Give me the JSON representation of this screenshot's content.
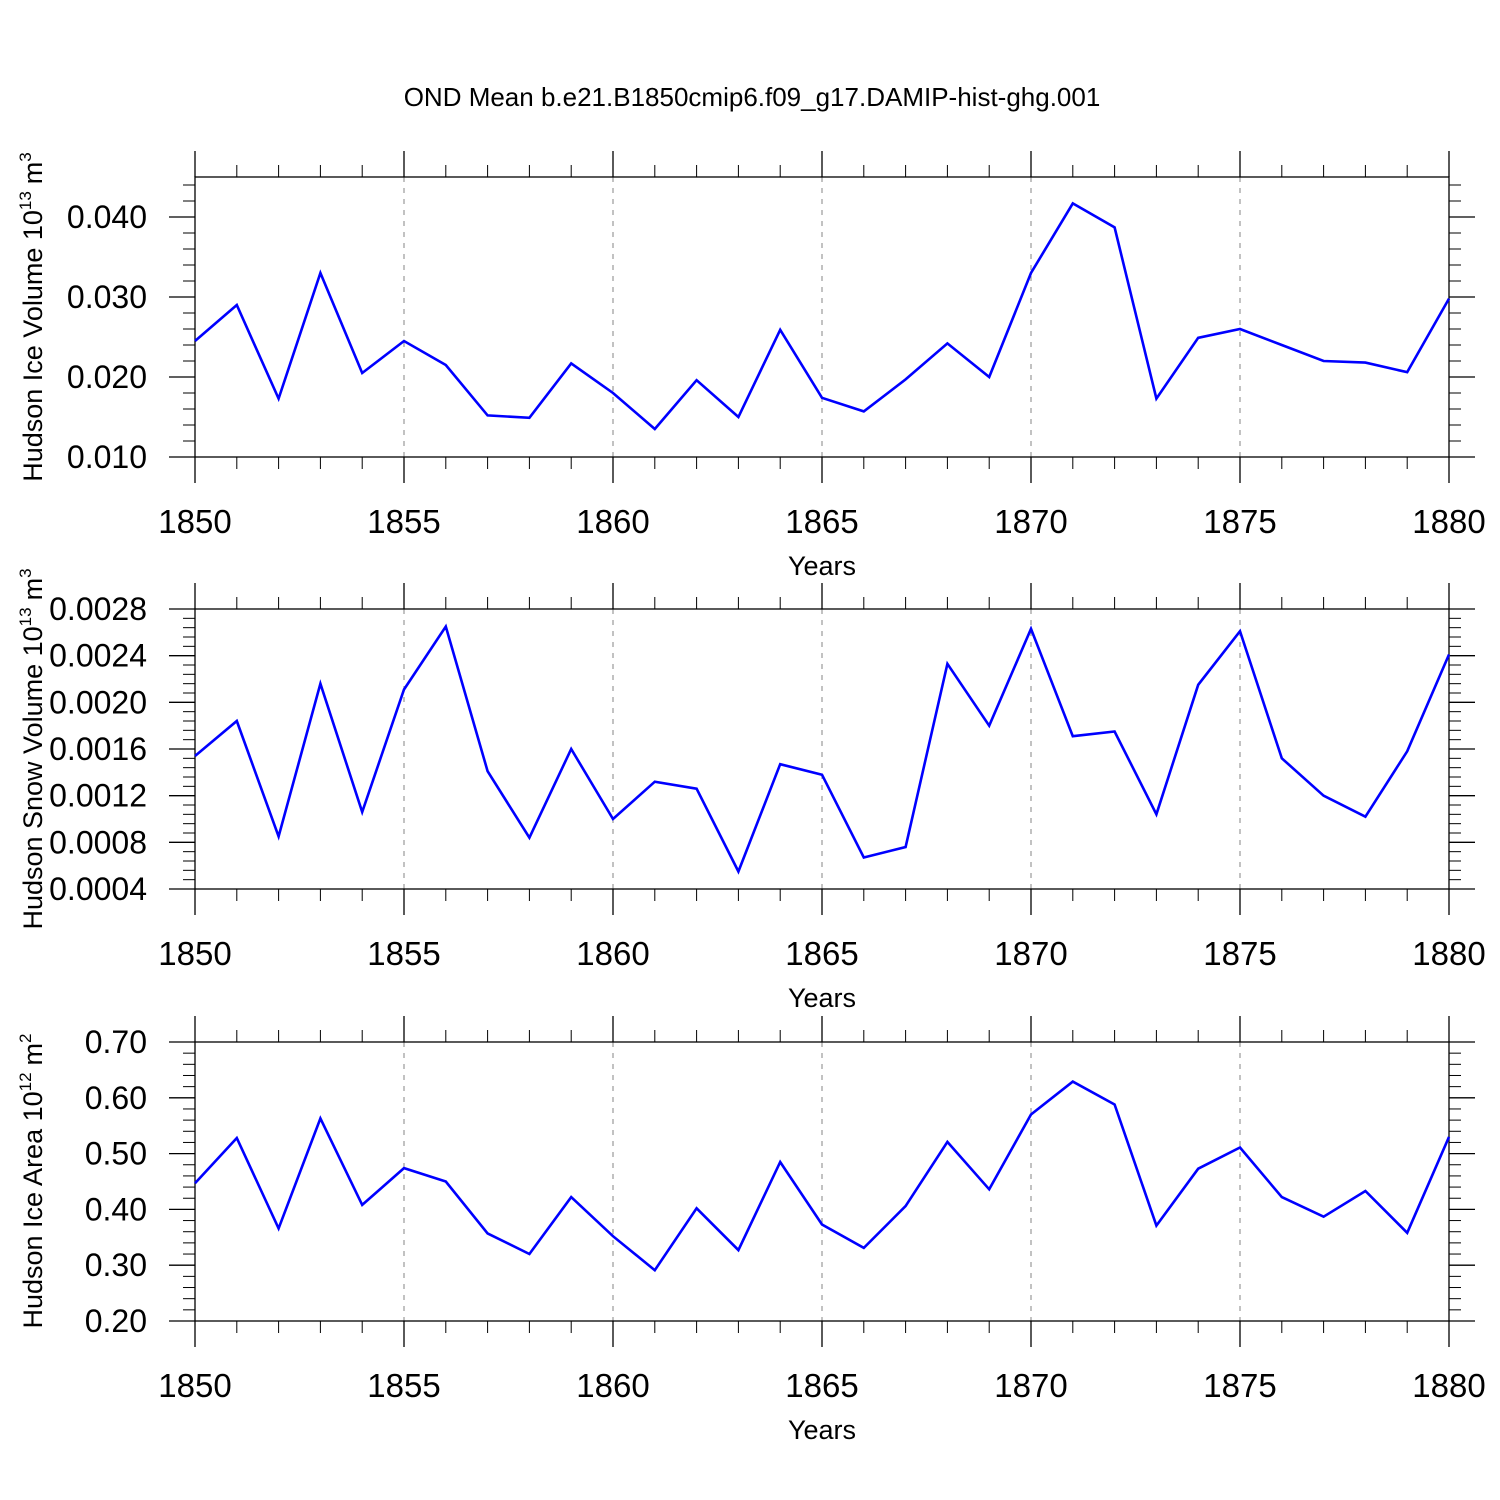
{
  "figure": {
    "title": "OND Mean b.e21.B1850cmip6.f09_g17.DAMIP-hist-ghg.001"
  },
  "chart_data": [
    {
      "type": "line",
      "ylabel": "Hudson Ice Volume 10",
      "ylabel_sup": "13",
      "ylabel_unit": "m",
      "ylabel_unit_sup": "3",
      "xlabel": "Years",
      "xlim": [
        1850,
        1880
      ],
      "ylim": [
        0.01,
        0.045
      ],
      "xticks": [
        1850,
        1855,
        1860,
        1865,
        1870,
        1875,
        1880
      ],
      "yticks": [
        0.01,
        0.02,
        0.03,
        0.04
      ],
      "ytick_labels": [
        "0.010",
        "0.020",
        "0.030",
        "0.040"
      ],
      "grid": "vertical-dashed",
      "color": "#0000ff",
      "x": [
        1850,
        1851,
        1852,
        1853,
        1854,
        1855,
        1856,
        1857,
        1858,
        1859,
        1860,
        1861,
        1862,
        1863,
        1864,
        1865,
        1866,
        1867,
        1868,
        1869,
        1870,
        1871,
        1872,
        1873,
        1874,
        1875,
        1876,
        1877,
        1878,
        1879,
        1880
      ],
      "y": [
        0.0245,
        0.029,
        0.0173,
        0.033,
        0.0205,
        0.0245,
        0.0215,
        0.0152,
        0.0149,
        0.0217,
        0.018,
        0.0135,
        0.0196,
        0.015,
        0.0259,
        0.0174,
        0.0157,
        0.0197,
        0.0242,
        0.02,
        0.033,
        0.0417,
        0.0387,
        0.0173,
        0.0249,
        0.026,
        0.024,
        0.022,
        0.0218,
        0.0206,
        0.0298
      ]
    },
    {
      "type": "line",
      "ylabel": "Hudson Snow Volume 10",
      "ylabel_sup": "13",
      "ylabel_unit": "m",
      "ylabel_unit_sup": "3",
      "xlabel": "Years",
      "xlim": [
        1850,
        1880
      ],
      "ylim": [
        0.0004,
        0.0028
      ],
      "xticks": [
        1850,
        1855,
        1860,
        1865,
        1870,
        1875,
        1880
      ],
      "yticks": [
        0.0004,
        0.0008,
        0.0012,
        0.0016,
        0.002,
        0.0024,
        0.0028
      ],
      "ytick_labels": [
        "0.0004",
        "0.0008",
        "0.0012",
        "0.0016",
        "0.0020",
        "0.0024",
        "0.0028"
      ],
      "grid": "vertical-dashed",
      "color": "#0000ff",
      "x": [
        1850,
        1851,
        1852,
        1853,
        1854,
        1855,
        1856,
        1857,
        1858,
        1859,
        1860,
        1861,
        1862,
        1863,
        1864,
        1865,
        1866,
        1867,
        1868,
        1869,
        1870,
        1871,
        1872,
        1873,
        1874,
        1875,
        1876,
        1877,
        1878,
        1879,
        1880
      ],
      "y": [
        0.00154,
        0.00184,
        0.00085,
        0.00216,
        0.00106,
        0.00211,
        0.00265,
        0.00141,
        0.00084,
        0.0016,
        0.001,
        0.00132,
        0.00126,
        0.00055,
        0.00147,
        0.00138,
        0.00067,
        0.00076,
        0.00233,
        0.0018,
        0.00263,
        0.00171,
        0.00175,
        0.00104,
        0.00215,
        0.00261,
        0.00152,
        0.0012,
        0.00102,
        0.00158,
        0.00241
      ]
    },
    {
      "type": "line",
      "ylabel": "Hudson Ice Area 10",
      "ylabel_sup": "12",
      "ylabel_unit": "m",
      "ylabel_unit_sup": "2",
      "xlabel": "Years",
      "xlim": [
        1850,
        1880
      ],
      "ylim": [
        0.2,
        0.7
      ],
      "xticks": [
        1850,
        1855,
        1860,
        1865,
        1870,
        1875,
        1880
      ],
      "yticks": [
        0.2,
        0.3,
        0.4,
        0.5,
        0.6,
        0.7
      ],
      "ytick_labels": [
        "0.20",
        "0.30",
        "0.40",
        "0.50",
        "0.60",
        "0.70"
      ],
      "grid": "vertical-dashed",
      "color": "#0000ff",
      "x": [
        1850,
        1851,
        1852,
        1853,
        1854,
        1855,
        1856,
        1857,
        1858,
        1859,
        1860,
        1861,
        1862,
        1863,
        1864,
        1865,
        1866,
        1867,
        1868,
        1869,
        1870,
        1871,
        1872,
        1873,
        1874,
        1875,
        1876,
        1877,
        1878,
        1879,
        1880
      ],
      "y": [
        0.447,
        0.528,
        0.366,
        0.563,
        0.408,
        0.474,
        0.45,
        0.357,
        0.32,
        0.422,
        0.352,
        0.291,
        0.402,
        0.327,
        0.485,
        0.373,
        0.331,
        0.406,
        0.521,
        0.436,
        0.57,
        0.629,
        0.588,
        0.371,
        0.473,
        0.511,
        0.422,
        0.387,
        0.433,
        0.358,
        0.53
      ]
    }
  ]
}
